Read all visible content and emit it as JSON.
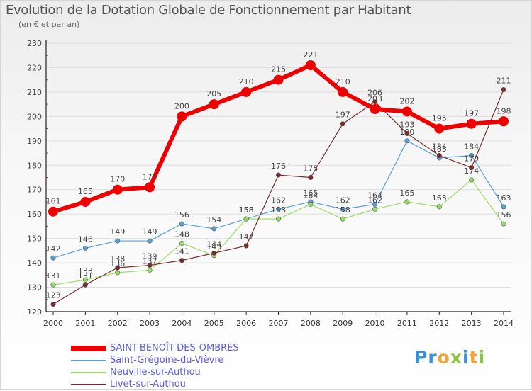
{
  "header": {
    "title": "Evolution de la Dotation Globale de Fonctionnement par Habitant",
    "subtitle": "(en € et par an)"
  },
  "logo": {
    "text": "Proxiti"
  },
  "colors": {
    "red": "#ee0000",
    "blue": "#5aa2d2",
    "green": "#99dd66",
    "darkred": "#7a2a2a",
    "grid": "#dedede",
    "axis": "#222222",
    "label": "#444444"
  },
  "chart_data": {
    "type": "line",
    "x": [
      2000,
      2001,
      2002,
      2003,
      2004,
      2005,
      2006,
      2007,
      2008,
      2009,
      2010,
      2011,
      2012,
      2013,
      2014
    ],
    "ylim": [
      120,
      230
    ],
    "yticks": [
      120,
      130,
      140,
      150,
      160,
      170,
      180,
      190,
      200,
      210,
      220,
      230
    ],
    "grid": "horizontal",
    "legend_position": "bottom-left",
    "series": [
      {
        "name": "SAINT-BENOÎT-DES-OMBRES",
        "color": "#ee0000",
        "emphasis": true,
        "values": [
          161,
          165,
          170,
          171,
          200,
          205,
          210,
          215,
          221,
          210,
          203,
          202,
          195,
          197,
          198
        ]
      },
      {
        "name": "Saint-Grégoire-du-Vièvre",
        "color": "#5aa2d2",
        "values": [
          142,
          146,
          149,
          149,
          156,
          154,
          158,
          162,
          165,
          162,
          164,
          190,
          183,
          184,
          163
        ]
      },
      {
        "name": "Neuville-sur-Authou",
        "color": "#99dd66",
        "values": [
          131,
          133,
          136,
          137,
          148,
          143,
          158,
          158,
          164,
          158,
          162,
          165,
          163,
          174,
          156
        ]
      },
      {
        "name": "Livet-sur-Authou",
        "color": "#7a2a2a",
        "values": [
          123,
          131,
          138,
          139,
          141,
          144,
          147,
          176,
          175,
          197,
          206,
          193,
          184,
          179,
          211
        ]
      }
    ]
  }
}
